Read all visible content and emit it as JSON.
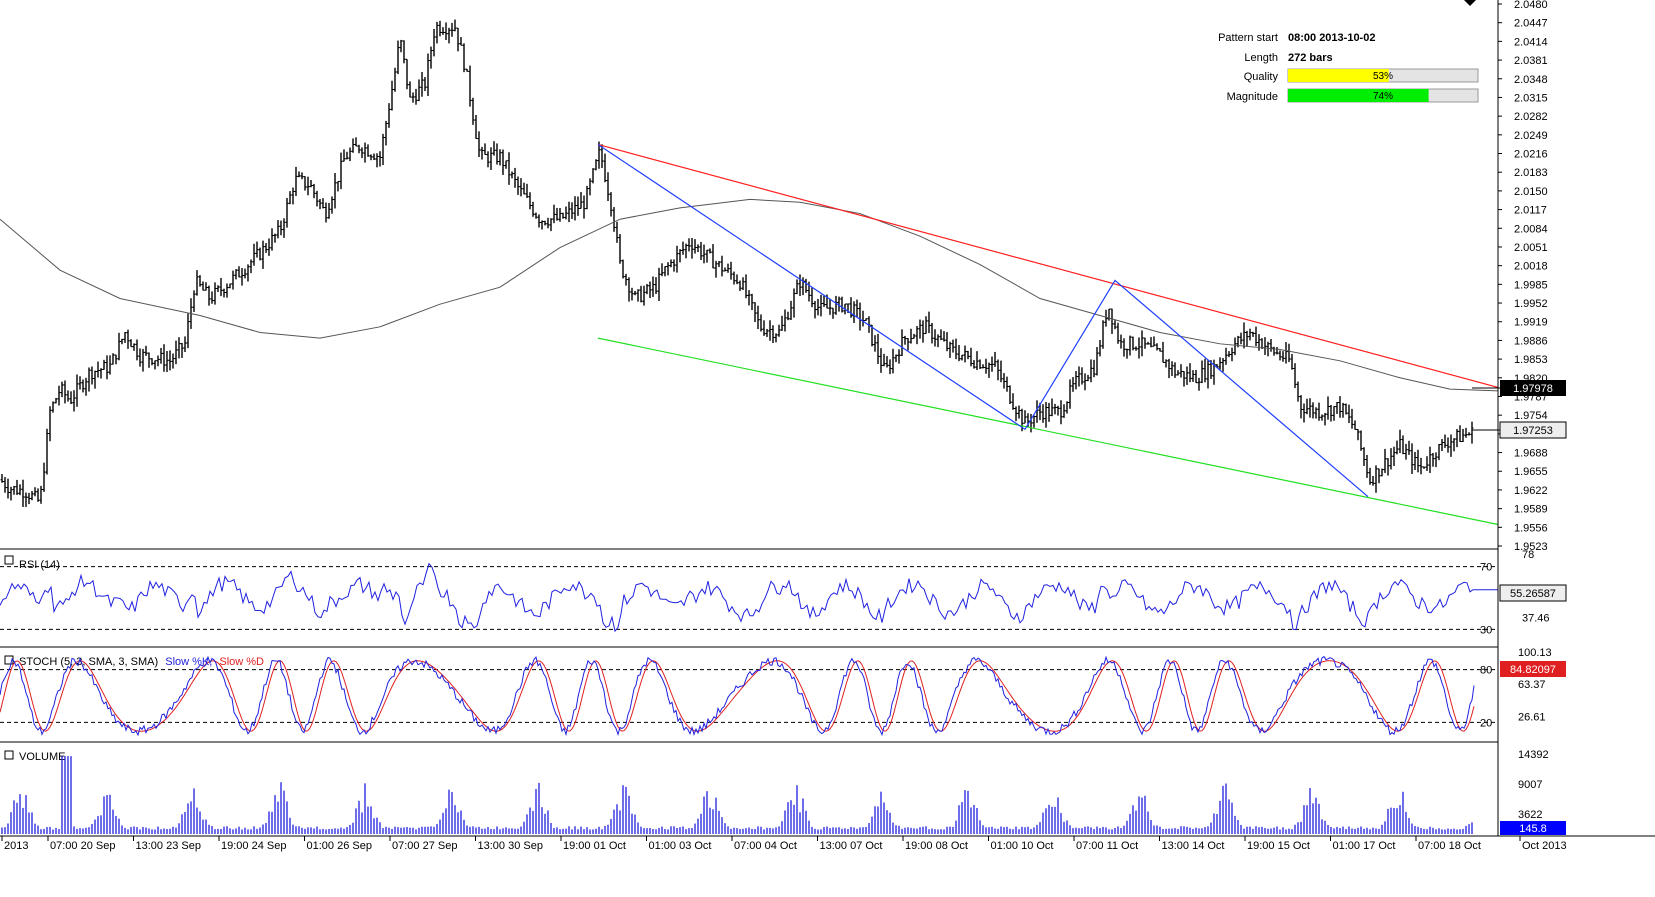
{
  "pattern_info": {
    "pattern_start_label": "Pattern start",
    "pattern_start_value": "08:00 2013-10-02",
    "length_label": "Length",
    "length_value": "272 bars",
    "quality_label": "Quality",
    "quality_value": "53%",
    "quality_fraction": 0.53,
    "magnitude_label": "Magnitude",
    "magnitude_value": "74%",
    "magnitude_fraction": 0.74,
    "quality_color": "#ffff00",
    "magnitude_color": "#00ee00"
  },
  "panels": {
    "rsi_title": "RSI (14)",
    "stoch_title": "STOCH (5, 3, SMA, 3, SMA)",
    "stoch_k_label": "Slow %K,",
    "stoch_d_label": "Slow %D",
    "volume_title": "VOLUME"
  },
  "colors": {
    "price": "#000000",
    "moving_average": "#555555",
    "resistance": "#ff2020",
    "support": "#20e020",
    "zigzag": "#2040ff",
    "rsi": "#2020e0",
    "stoch_k": "#2020e0",
    "stoch_d": "#e02020",
    "volume": "#2020e0",
    "last_price_box": "#000000",
    "volume_box": "#0000ff"
  },
  "chart_data": [
    {
      "type": "ohlc",
      "name": "price",
      "ylim": [
        1.9523,
        2.048
      ],
      "y_ticks": [
        "2.0480",
        "2.0447",
        "2.0414",
        "2.0381",
        "2.0348",
        "2.0315",
        "2.0282",
        "2.0249",
        "2.0216",
        "2.0183",
        "2.0150",
        "2.0117",
        "2.0084",
        "2.0051",
        "2.0018",
        "1.9985",
        "1.9952",
        "1.9919",
        "1.9886",
        "1.9853",
        "1.9820",
        "1.9787",
        "1.9754",
        "1.9721",
        "1.9688",
        "1.9655",
        "1.9622",
        "1.9589",
        "1.9556",
        "1.9523"
      ],
      "x_labels": [
        "2013",
        "07:00 20 Sep",
        "13:00 23 Sep",
        "19:00 24 Sep",
        "01:00 26 Sep",
        "07:00 27 Sep",
        "13:00 30 Sep",
        "19:00 01 Oct",
        "01:00 03 Oct",
        "07:00 04 Oct",
        "13:00 07 Oct",
        "19:00 08 Oct",
        "01:00 10 Oct",
        "07:00 11 Oct",
        "13:00 14 Oct",
        "19:00 15 Oct",
        "01:00 17 Oct",
        "07:00 18 Oct",
        "Oct 2013"
      ],
      "price_path": [
        [
          0,
          1.964
        ],
        [
          10,
          1.9625
        ],
        [
          25,
          1.962
        ],
        [
          40,
          1.96
        ],
        [
          50,
          1.976
        ],
        [
          60,
          1.98
        ],
        [
          70,
          1.978
        ],
        [
          90,
          1.983
        ],
        [
          110,
          1.984
        ],
        [
          125,
          1.99
        ],
        [
          140,
          1.986
        ],
        [
          170,
          1.985
        ],
        [
          185,
          1.988
        ],
        [
          195,
          1.999
        ],
        [
          210,
          1.996
        ],
        [
          230,
          1.999
        ],
        [
          260,
          2.004
        ],
        [
          280,
          2.008
        ],
        [
          295,
          2.017
        ],
        [
          310,
          2.016
        ],
        [
          325,
          2.011
        ],
        [
          345,
          2.021
        ],
        [
          360,
          2.023
        ],
        [
          380,
          2.021
        ],
        [
          395,
          2.036
        ],
        [
          400,
          2.042
        ],
        [
          410,
          2.031
        ],
        [
          425,
          2.034
        ],
        [
          435,
          2.044
        ],
        [
          455,
          2.044
        ],
        [
          465,
          2.037
        ],
        [
          480,
          2.021
        ],
        [
          500,
          2.021
        ],
        [
          520,
          2.015
        ],
        [
          540,
          2.01
        ],
        [
          560,
          2.01
        ],
        [
          585,
          2.013
        ],
        [
          600,
          2.022
        ],
        [
          612,
          2.012
        ],
        [
          620,
          2.002
        ],
        [
          635,
          1.996
        ],
        [
          655,
          1.998
        ],
        [
          665,
          2.001
        ],
        [
          690,
          2.006
        ],
        [
          710,
          2.003
        ],
        [
          740,
          1.999
        ],
        [
          760,
          1.991
        ],
        [
          780,
          1.99
        ],
        [
          800,
          1.999
        ],
        [
          820,
          1.994
        ],
        [
          845,
          1.995
        ],
        [
          865,
          1.992
        ],
        [
          885,
          1.983
        ],
        [
          905,
          1.989
        ],
        [
          925,
          1.991
        ],
        [
          950,
          1.987
        ],
        [
          975,
          1.985
        ],
        [
          995,
          1.984
        ],
        [
          1015,
          1.977
        ],
        [
          1025,
          1.974
        ],
        [
          1040,
          1.976
        ],
        [
          1060,
          1.976
        ],
        [
          1075,
          1.981
        ],
        [
          1095,
          1.984
        ],
        [
          1108,
          1.995
        ],
        [
          1120,
          1.988
        ],
        [
          1140,
          1.988
        ],
        [
          1160,
          1.986
        ],
        [
          1175,
          1.983
        ],
        [
          1195,
          1.982
        ],
        [
          1215,
          1.984
        ],
        [
          1235,
          1.988
        ],
        [
          1250,
          1.99
        ],
        [
          1270,
          1.987
        ],
        [
          1290,
          1.985
        ],
        [
          1300,
          1.977
        ],
        [
          1320,
          1.976
        ],
        [
          1340,
          1.977
        ],
        [
          1355,
          1.973
        ],
        [
          1370,
          1.964
        ],
        [
          1385,
          1.967
        ],
        [
          1400,
          1.97
        ],
        [
          1420,
          1.966
        ],
        [
          1435,
          1.969
        ],
        [
          1450,
          1.971
        ],
        [
          1475,
          1.9725
        ]
      ],
      "moving_average": [
        [
          0,
          2.01
        ],
        [
          60,
          2.001
        ],
        [
          120,
          1.996
        ],
        [
          200,
          1.993
        ],
        [
          260,
          1.99
        ],
        [
          320,
          1.989
        ],
        [
          380,
          1.991
        ],
        [
          440,
          1.995
        ],
        [
          500,
          1.998
        ],
        [
          560,
          2.005
        ],
        [
          620,
          2.01
        ],
        [
          680,
          2.012
        ],
        [
          750,
          2.0135
        ],
        [
          800,
          2.013
        ],
        [
          860,
          2.011
        ],
        [
          920,
          2.007
        ],
        [
          980,
          2.002
        ],
        [
          1040,
          1.996
        ],
        [
          1100,
          1.993
        ],
        [
          1160,
          1.99
        ],
        [
          1220,
          1.988
        ],
        [
          1280,
          1.987
        ],
        [
          1340,
          1.985
        ],
        [
          1400,
          1.982
        ],
        [
          1450,
          1.98
        ],
        [
          1498,
          1.9797
        ]
      ],
      "resistance_line": [
        [
          598,
          2.0232
        ],
        [
          1498,
          1.9803
        ]
      ],
      "support_line": [
        [
          598,
          1.989
        ],
        [
          1498,
          1.9561
        ]
      ],
      "zigzag": [
        [
          598,
          2.0232
        ],
        [
          1025,
          1.9729
        ],
        [
          1115,
          1.9992
        ],
        [
          1368,
          1.961
        ]
      ],
      "last_price_box": "1.97978",
      "current_price_box": "1.97253"
    },
    {
      "type": "line",
      "name": "rsi",
      "ylim": [
        20,
        80
      ],
      "y_ticks": [
        "78",
        "70",
        "37.46",
        "30"
      ],
      "levels": [
        70,
        30
      ],
      "current_value": "55.26587"
    },
    {
      "type": "line",
      "name": "stochastic",
      "ylim": [
        0,
        100
      ],
      "y_ticks": [
        "100.13",
        "80",
        "63.37",
        "26.61",
        "20"
      ],
      "levels": [
        80,
        20
      ],
      "current_value": "84.82097"
    },
    {
      "type": "bar",
      "name": "volume",
      "ylim": [
        0,
        16000
      ],
      "y_ticks": [
        "14392",
        "9007",
        "3622"
      ],
      "current_value": "145.8"
    }
  ]
}
